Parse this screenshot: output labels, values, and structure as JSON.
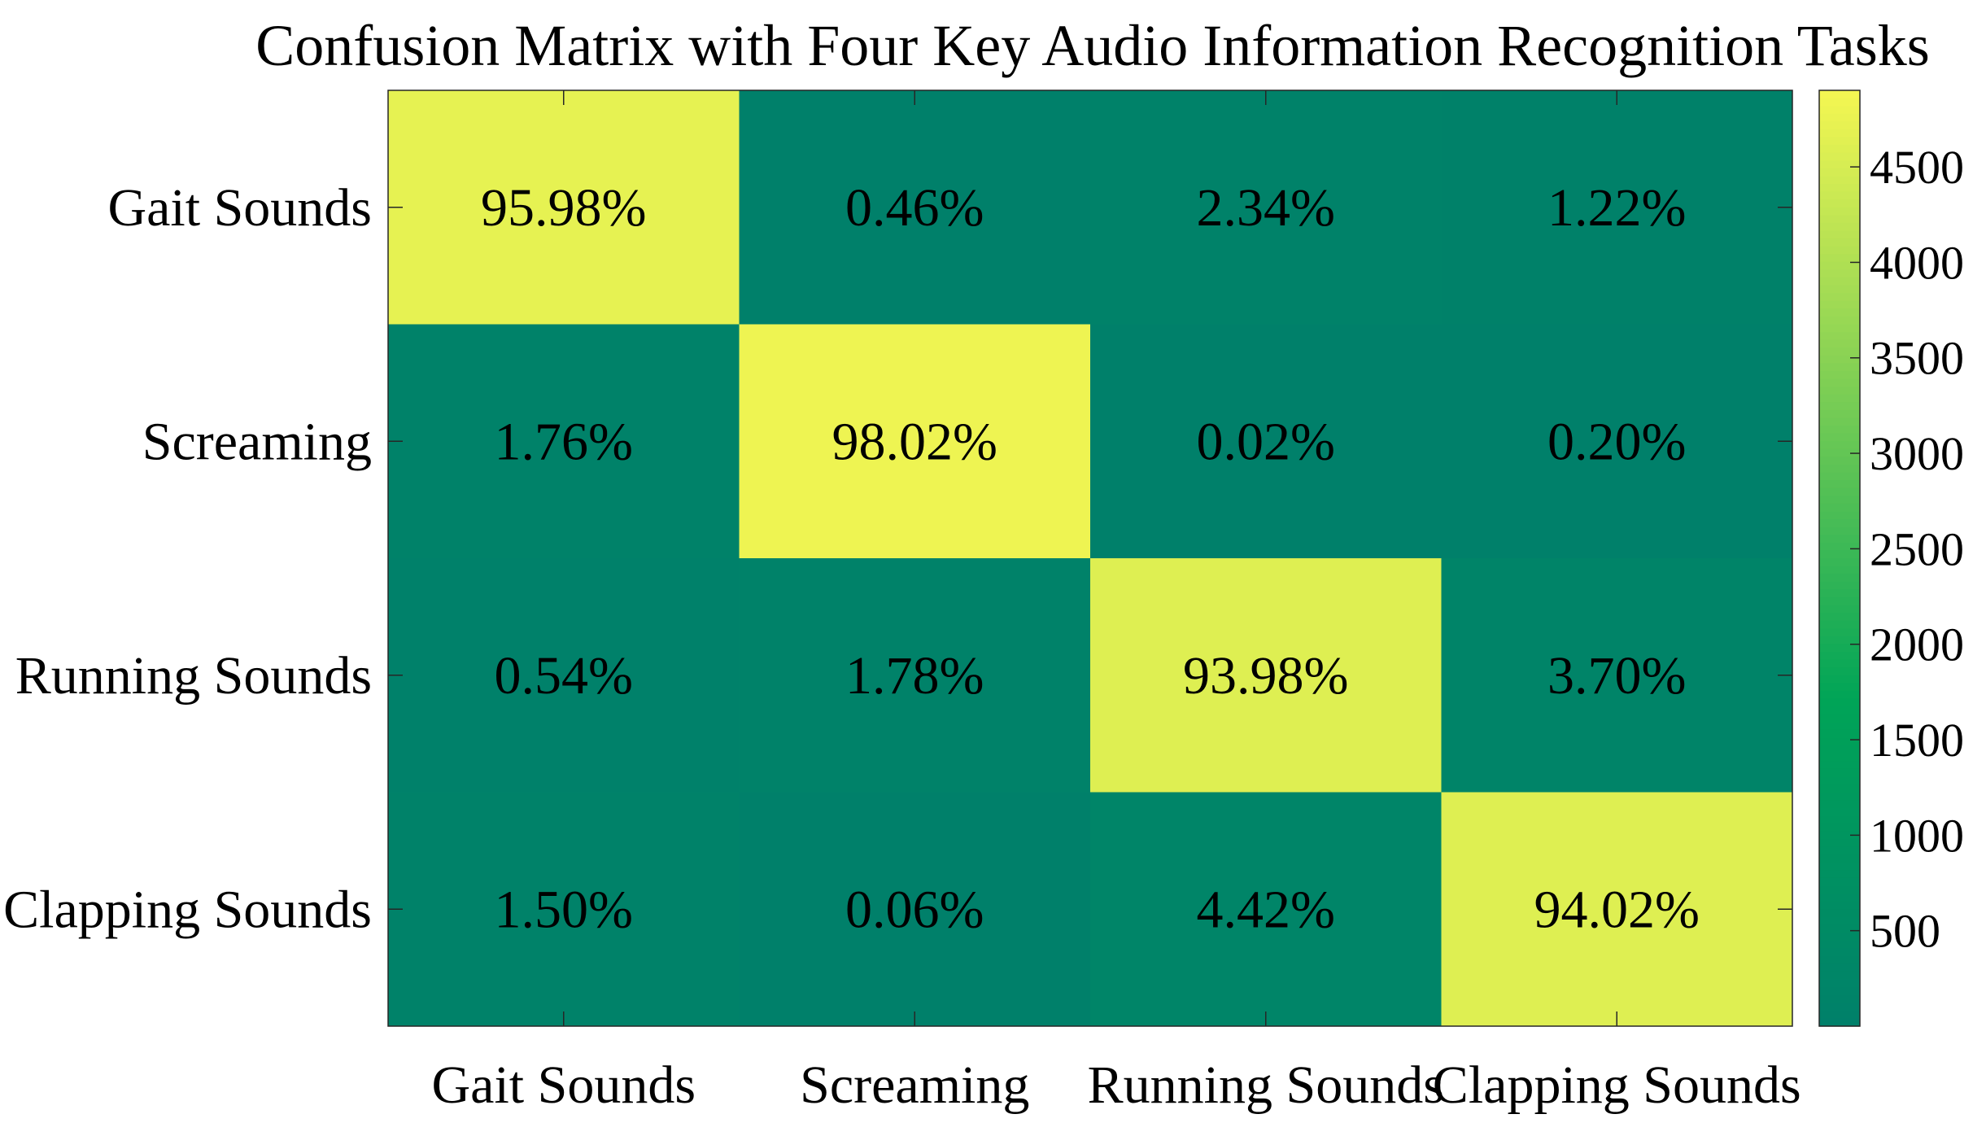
{
  "chart_data": {
    "type": "heatmap",
    "title": "Confusion Matrix with Four Key Audio Information Recognition Tasks",
    "xlabel": "",
    "ylabel": "",
    "row_labels": [
      "Gait Sounds",
      "Screaming",
      "Running Sounds",
      "Clapping Sounds"
    ],
    "col_labels": [
      "Gait Sounds",
      "Screaming",
      "Running Sounds",
      "Clapping Sounds"
    ],
    "cell_text": [
      [
        "95.98%",
        "0.46%",
        "2.34%",
        "1.22%"
      ],
      [
        "1.76%",
        "98.02%",
        "0.02%",
        "0.20%"
      ],
      [
        "0.54%",
        "1.78%",
        "93.98%",
        "3.70%"
      ],
      [
        "1.50%",
        "0.06%",
        "4.42%",
        "94.02%"
      ]
    ],
    "percent_values": [
      [
        95.98,
        0.46,
        2.34,
        1.22
      ],
      [
        1.76,
        98.02,
        0.02,
        0.2
      ],
      [
        0.54,
        1.78,
        93.98,
        3.7
      ],
      [
        1.5,
        0.06,
        4.42,
        94.02
      ]
    ],
    "colorbar": {
      "ticks": [
        "500",
        "1000",
        "1500",
        "2000",
        "2500",
        "3000",
        "3500",
        "4000",
        "4500"
      ],
      "tick_values": [
        500,
        1000,
        1500,
        2000,
        2500,
        3000,
        3500,
        4000,
        4500
      ],
      "range": [
        0,
        4901
      ]
    },
    "colormap": {
      "low": "#00806a",
      "mid": "#00a457",
      "high": "#f5f752"
    },
    "grid": false
  }
}
